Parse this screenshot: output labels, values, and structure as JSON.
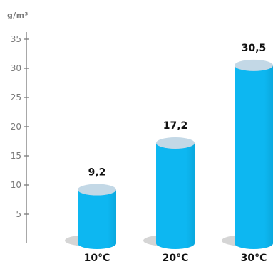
{
  "chart_data": {
    "type": "bar",
    "style": "3d-cylinder",
    "title": "",
    "xlabel": "",
    "ylabel": "g/m³",
    "categories": [
      "10°C",
      "20°C",
      "30°C"
    ],
    "values": [
      9.2,
      17.2,
      30.5
    ],
    "value_labels": [
      "9,2",
      "17,2",
      "30,5"
    ],
    "y_ticks": [
      5,
      10,
      15,
      20,
      25,
      30,
      35
    ],
    "y_tick_labels": [
      "5",
      "10",
      "15",
      "20",
      "25",
      "30",
      "35"
    ],
    "ylim": [
      0,
      35
    ],
    "grid": false,
    "legend": "none",
    "colors": {
      "bar": "#0db7f1",
      "bar_shade": "#0aa8de",
      "bar_top": "#c3d8e6",
      "shadow": "#d5d5d5",
      "axis": "#7a7a7a",
      "text": "#111111"
    }
  }
}
